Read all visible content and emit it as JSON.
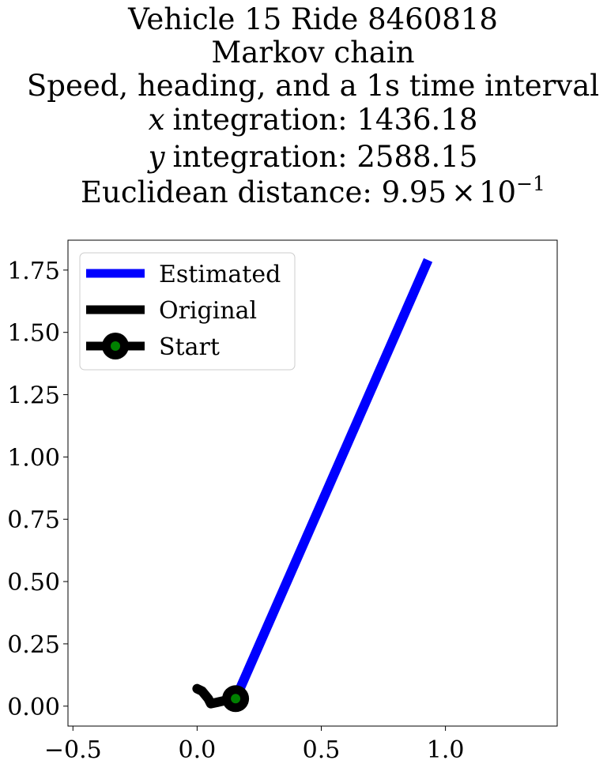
{
  "chart_data": {
    "type": "line",
    "title_lines": [
      "Vehicle 15 Ride 8460818",
      "Markov chain",
      "Speed, heading, and a 1s time interval",
      "integration: 1436.18",
      "integration: 2588.15",
      "Euclidean distance: 9.95"
    ],
    "title_math": {
      "x_symbol": "x",
      "y_symbol": "y",
      "times_sign": "×",
      "ten_base": "10",
      "exponent": "−1"
    },
    "xlim": [
      -0.52,
      1.45
    ],
    "ylim": [
      -0.08,
      1.87
    ],
    "x_ticks": [
      -0.5,
      0.0,
      0.5,
      1.0
    ],
    "x_tick_labels": [
      "−0.5",
      "0.0",
      "0.5",
      "1.0"
    ],
    "y_ticks": [
      0.0,
      0.25,
      0.5,
      0.75,
      1.0,
      1.25,
      1.5,
      1.75
    ],
    "y_tick_labels": [
      "0.00",
      "0.25",
      "0.50",
      "0.75",
      "1.00",
      "1.25",
      "1.50",
      "1.75"
    ],
    "grid": false,
    "legend_position": "upper-left",
    "series": [
      {
        "name": "Estimated",
        "color": "#0000ff",
        "x": [
          0.155,
          0.93
        ],
        "y": [
          0.03,
          1.79
        ]
      },
      {
        "name": "Original",
        "color": "#000000",
        "x": [
          0.0,
          0.02,
          0.045,
          0.055,
          0.08,
          0.11,
          0.155
        ],
        "y": [
          0.07,
          0.06,
          0.03,
          0.01,
          0.015,
          0.022,
          0.03
        ]
      }
    ],
    "start": {
      "name": "Start",
      "x": 0.155,
      "y": 0.03,
      "outer_color": "#000000",
      "inner_color": "#008000"
    }
  }
}
